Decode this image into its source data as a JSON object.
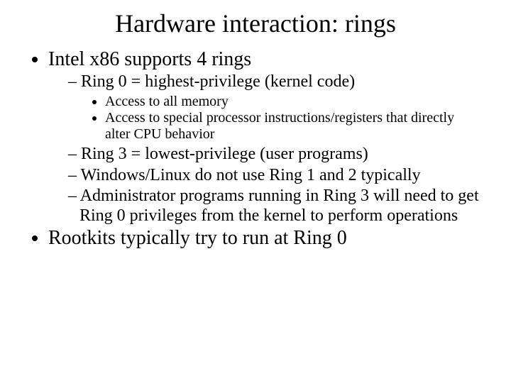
{
  "title": "Hardware interaction: rings",
  "bullets": {
    "b1": "Intel x86 supports 4 rings",
    "b1_1": "Ring 0 = highest-privilege (kernel code)",
    "b1_1_1": "Access to all memory",
    "b1_1_2": "Access to special processor instructions/registers that directly alter CPU behavior",
    "b1_2": "Ring 3 = lowest-privilege (user programs)",
    "b1_3": "Windows/Linux do not use Ring 1 and 2 typically",
    "b1_4": "Administrator programs running in Ring 3 will need to get Ring 0 privileges from the kernel to perform operations",
    "b2": "Rootkits typically try to run at Ring 0"
  },
  "colors": {
    "background": "#ffffff",
    "text": "#000000"
  },
  "typography": {
    "family": "Times New Roman",
    "title_size_pt": 36,
    "lvl1_size_pt": 28,
    "lvl2_size_pt": 24,
    "lvl3_size_pt": 20
  }
}
